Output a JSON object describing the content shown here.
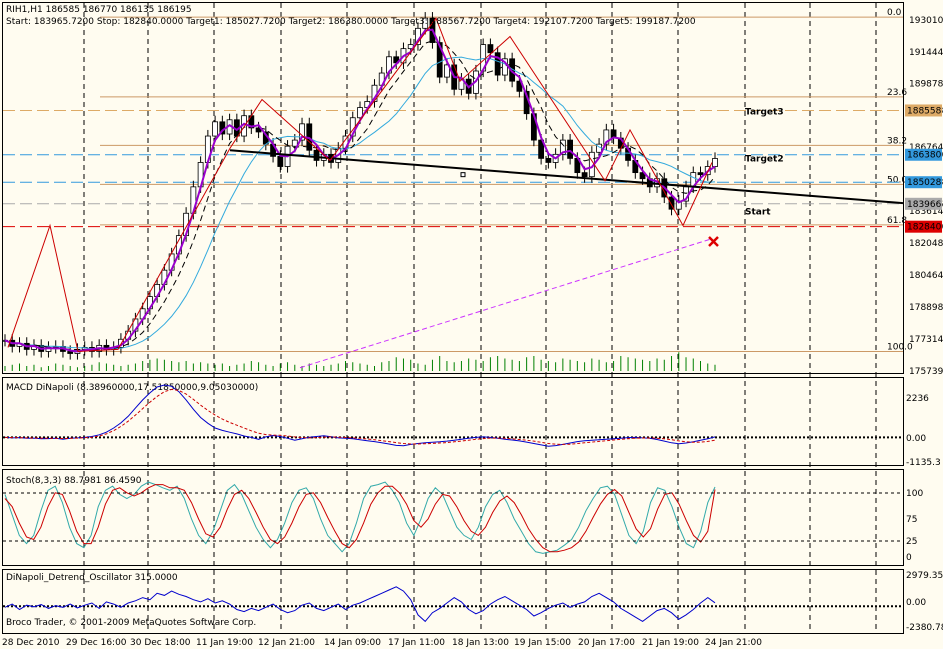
{
  "header": {
    "symbol_line": "RIH1,H1  186585 186770 186135 186195",
    "targets_line": "Start: 183965.7200   Stop: 182840.0000   Target1: 185027.7200   Target2: 186380.0000   Target3: 188567.7200   Target4: 192107.7200   Target5: 199187.7200"
  },
  "footer": {
    "copyright": "Broco Trader, © 2001-2009 MetaQuotes Software Corp."
  },
  "colors": {
    "background": "#fffcf0",
    "candle_up": "#ffffff",
    "candle_down": "#000000",
    "ma_purple": "#9900cc",
    "ma_blue": "#33aadd",
    "trend": "#000000",
    "zigzag": "#cc0000",
    "volume": "#008000",
    "fib": "#cc9966",
    "macd": "#0000cc",
    "signal": "#cc0000",
    "stoch_main": "#33aaaa",
    "stoch_signal": "#cc0000",
    "dinapoli": "#0000cc"
  },
  "chart_data": [
    {
      "type": "candlestick",
      "title": "RIH1,H1",
      "ohlc_last": {
        "open": 186585,
        "high": 186770,
        "low": 186135,
        "close": 186195
      },
      "x_tick_labels": [
        "28 Dec 2010",
        "29 Dec 16:00",
        "30 Dec 18:00",
        "11 Jan 19:00",
        "12 Jan 21:00",
        "14 Jan 09:00",
        "17 Jan 11:00",
        "18 Jan 13:00",
        "19 Jan 15:00",
        "20 Jan 17:00",
        "21 Jan 19:00",
        "24 Jan 21:00"
      ],
      "y_range": [
        175739,
        193600
      ],
      "y_ticks": [
        193010,
        191444,
        189878,
        188558,
        186764,
        186380,
        185028,
        183966,
        183614,
        182840,
        182048,
        180464,
        178898,
        177314,
        175739
      ],
      "price_labels": [
        {
          "text": "188558",
          "value": 188558,
          "bg": "#ddaa66"
        },
        {
          "text": "186380",
          "value": 186380,
          "bg": "#3399dd"
        },
        {
          "text": "185028",
          "value": 185028,
          "bg": "#3399dd"
        },
        {
          "text": "183966",
          "value": 183966,
          "bg": "#aaaaaa"
        },
        {
          "text": "182840",
          "value": 182840,
          "bg": "#dd0000"
        }
      ],
      "fibo_levels": [
        {
          "label": "0.0",
          "value": 193150
        },
        {
          "label": "23.6",
          "value": 189230
        },
        {
          "label": "38.2",
          "value": 186840
        },
        {
          "label": "50.0",
          "value": 184920
        },
        {
          "label": "61.8",
          "value": 182930
        },
        {
          "label": "100.0",
          "value": 176700
        }
      ],
      "target_labels": [
        {
          "text": "Target3",
          "value": 188350
        },
        {
          "text": "Target2",
          "value": 186040
        },
        {
          "text": "Start",
          "value": 183430
        }
      ],
      "closes": [
        177250,
        176950,
        177100,
        176800,
        177000,
        176700,
        176900,
        176950,
        176700,
        176600,
        176800,
        176900,
        176700,
        177000,
        176800,
        176900,
        177300,
        177700,
        178300,
        178800,
        179400,
        180000,
        180700,
        181500,
        182400,
        183500,
        184800,
        186000,
        187300,
        188000,
        187400,
        188100,
        187300,
        188300,
        187700,
        187500,
        186900,
        186300,
        185800,
        186800,
        187100,
        187900,
        186600,
        186100,
        186400,
        186000,
        186700,
        187300,
        188200,
        188700,
        189000,
        189800,
        190400,
        191200,
        190900,
        191600,
        191800,
        192600,
        193100,
        191900,
        190200,
        190800,
        189600,
        190100,
        189400,
        190500,
        191800,
        191400,
        190300,
        191100,
        190000,
        189500,
        188400,
        187100,
        186200,
        186000,
        186400,
        187100,
        186200,
        185500,
        185300,
        186500,
        186900,
        187600,
        187200,
        186700,
        186100,
        185500,
        185200,
        184800,
        185200,
        184300,
        183700,
        184100,
        184800,
        185500,
        185400,
        185800,
        186195
      ],
      "volumes": [
        20,
        25,
        30,
        20,
        25,
        15,
        20,
        30,
        25,
        20,
        15,
        20,
        25,
        35,
        30,
        25,
        20,
        25,
        30,
        40,
        45,
        50,
        45,
        40,
        35,
        40,
        30,
        35,
        30,
        25,
        30,
        20,
        25,
        30,
        40,
        35,
        25,
        20,
        30,
        35,
        25,
        20,
        30,
        25,
        20,
        25,
        30,
        40,
        35,
        30,
        25,
        20,
        35,
        40,
        55,
        50,
        45,
        30,
        25,
        45,
        60,
        40,
        35,
        40,
        50,
        45,
        40,
        55,
        60,
        50,
        45,
        40,
        55,
        60,
        45,
        40,
        35,
        50,
        45,
        40,
        35,
        50,
        45,
        35,
        40,
        60,
        55,
        50,
        45,
        40,
        50,
        45,
        60,
        75,
        55,
        50,
        40,
        30,
        25
      ]
    },
    {
      "type": "line",
      "title": "MACD  DiNapoli (8.38960000,17.51850000,9.05030000)",
      "y_ticks": [
        "2236",
        "0.00",
        "-1135.3"
      ],
      "y_range": [
        -1135.3,
        2236
      ],
      "series": [
        {
          "values": [
            0,
            -20,
            -10,
            -40,
            -30,
            -60,
            -50,
            -40,
            -80,
            -40,
            -20,
            0,
            40,
            110,
            220,
            400,
            620,
            900,
            1250,
            1600,
            1900,
            2150,
            2236,
            2180,
            1950,
            1600,
            1200,
            850,
            600,
            400,
            300,
            220,
            150,
            60,
            0,
            -80,
            20,
            80,
            40,
            -40,
            -120,
            -60,
            10,
            40,
            70,
            30,
            -20,
            -40,
            -60,
            -100,
            -140,
            -180,
            -230,
            -280,
            -340,
            -360,
            -300,
            -260,
            -230,
            -210,
            -190,
            -160,
            -120,
            -80,
            -40,
            0,
            20,
            0,
            -40,
            -80,
            -110,
            -150,
            -200,
            -260,
            -320,
            -380,
            -350,
            -300,
            -240,
            -180,
            -140,
            -120,
            -100,
            -80,
            -60,
            -40,
            -10,
            0,
            -20,
            -40,
            -90,
            -160,
            -230,
            -270,
            -240,
            -190,
            -120,
            -60,
            20
          ]
        },
        {
          "values": [
            0,
            -10,
            -15,
            -20,
            -25,
            -30,
            -35,
            -40,
            -45,
            -40,
            -30,
            -15,
            10,
            60,
            150,
            290,
            470,
            690,
            950,
            1230,
            1500,
            1750,
            1950,
            2050,
            2000,
            1850,
            1620,
            1380,
            1150,
            950,
            780,
            640,
            520,
            400,
            280,
            180,
            120,
            100,
            90,
            60,
            20,
            -10,
            -20,
            -10,
            10,
            20,
            10,
            -5,
            -20,
            -40,
            -70,
            -100,
            -140,
            -180,
            -220,
            -260,
            -280,
            -280,
            -270,
            -255,
            -240,
            -220,
            -190,
            -160,
            -120,
            -80,
            -50,
            -30,
            -30,
            -40,
            -60,
            -90,
            -120,
            -160,
            -210,
            -260,
            -290,
            -300,
            -290,
            -260,
            -230,
            -200,
            -170,
            -140,
            -110,
            -80,
            -55,
            -35,
            -25,
            -25,
            -35,
            -60,
            -100,
            -150,
            -190,
            -210,
            -200,
            -170,
            -120
          ]
        }
      ]
    },
    {
      "type": "line",
      "title": "Stoch(8,3,3) 88.7981 86.4590",
      "y_ticks": [
        "100",
        "75",
        "25",
        "0"
      ],
      "y_range": [
        0,
        100
      ],
      "series": [
        {
          "values": [
            80,
            55,
            30,
            20,
            30,
            60,
            85,
            90,
            70,
            40,
            20,
            15,
            30,
            65,
            85,
            90,
            80,
            75,
            80,
            90,
            95,
            92,
            88,
            85,
            90,
            75,
            50,
            30,
            20,
            35,
            60,
            85,
            92,
            80,
            60,
            40,
            25,
            15,
            25,
            45,
            70,
            85,
            88,
            75,
            50,
            30,
            20,
            10,
            20,
            45,
            75,
            90,
            92,
            95,
            85,
            70,
            45,
            30,
            50,
            75,
            88,
            80,
            60,
            40,
            30,
            25,
            40,
            65,
            80,
            85,
            70,
            50,
            35,
            20,
            10,
            8,
            10,
            12,
            18,
            25,
            40,
            60,
            75,
            88,
            90,
            80,
            55,
            30,
            20,
            35,
            70,
            88,
            85,
            65,
            40,
            20,
            15,
            35,
            70,
            89
          ]
        },
        {
          "values": [
            75,
            65,
            45,
            28,
            25,
            40,
            65,
            82,
            80,
            60,
            35,
            20,
            20,
            40,
            68,
            85,
            88,
            82,
            78,
            82,
            88,
            92,
            92,
            88,
            88,
            85,
            70,
            50,
            32,
            28,
            40,
            62,
            80,
            85,
            75,
            58,
            40,
            25,
            20,
            28,
            45,
            65,
            80,
            82,
            70,
            52,
            35,
            20,
            15,
            25,
            45,
            68,
            82,
            90,
            90,
            82,
            68,
            48,
            40,
            50,
            68,
            80,
            78,
            65,
            48,
            35,
            30,
            40,
            58,
            72,
            78,
            70,
            55,
            38,
            25,
            15,
            10,
            10,
            12,
            15,
            22,
            35,
            52,
            68,
            80,
            86,
            78,
            58,
            38,
            28,
            38,
            62,
            80,
            82,
            68,
            48,
            30,
            22,
            35,
            86
          ]
        }
      ]
    },
    {
      "type": "line",
      "title": "DiNapoli_Detrend_Oscillator 315.0000",
      "y_ticks": [
        "2979.353",
        "0.00",
        "-2380.78"
      ],
      "y_range": [
        -2380.78,
        2979.353
      ],
      "series": [
        {
          "values": [
            -100,
            200,
            -300,
            100,
            -50,
            150,
            -200,
            50,
            -100,
            200,
            -150,
            100,
            300,
            -200,
            400,
            200,
            -100,
            300,
            500,
            800,
            600,
            1200,
            1000,
            1400,
            1100,
            900,
            600,
            400,
            700,
            300,
            500,
            200,
            -300,
            -500,
            -200,
            -400,
            -100,
            200,
            -300,
            -600,
            -400,
            100,
            300,
            -200,
            -400,
            -100,
            200,
            -300,
            100,
            300,
            600,
            900,
            1200,
            1500,
            1800,
            1400,
            600,
            -800,
            -1400,
            -600,
            -200,
            300,
            800,
            400,
            -300,
            -700,
            -400,
            200,
            600,
            900,
            500,
            100,
            -300,
            -900,
            -600,
            -200,
            100,
            300,
            -100,
            200,
            400,
            900,
            1200,
            800,
            400,
            -200,
            -600,
            -1000,
            -1400,
            -900,
            -400,
            -200,
            -600,
            -1200,
            -800,
            -300,
            300,
            800,
            315
          ]
        }
      ]
    }
  ]
}
